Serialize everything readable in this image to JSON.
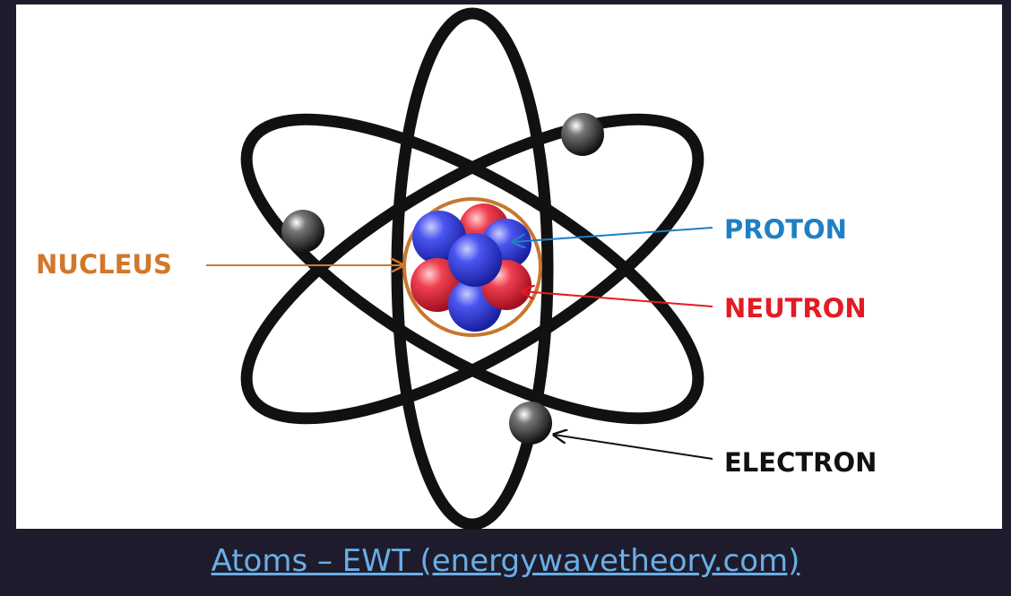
{
  "labels": {
    "nucleus": "NUCLEUS",
    "proton": "PROTON",
    "neutron": "NEUTRON",
    "electron": "ELECTRON"
  },
  "caption": {
    "link": "Atoms – EWT (energywavetheory.com)"
  }
}
